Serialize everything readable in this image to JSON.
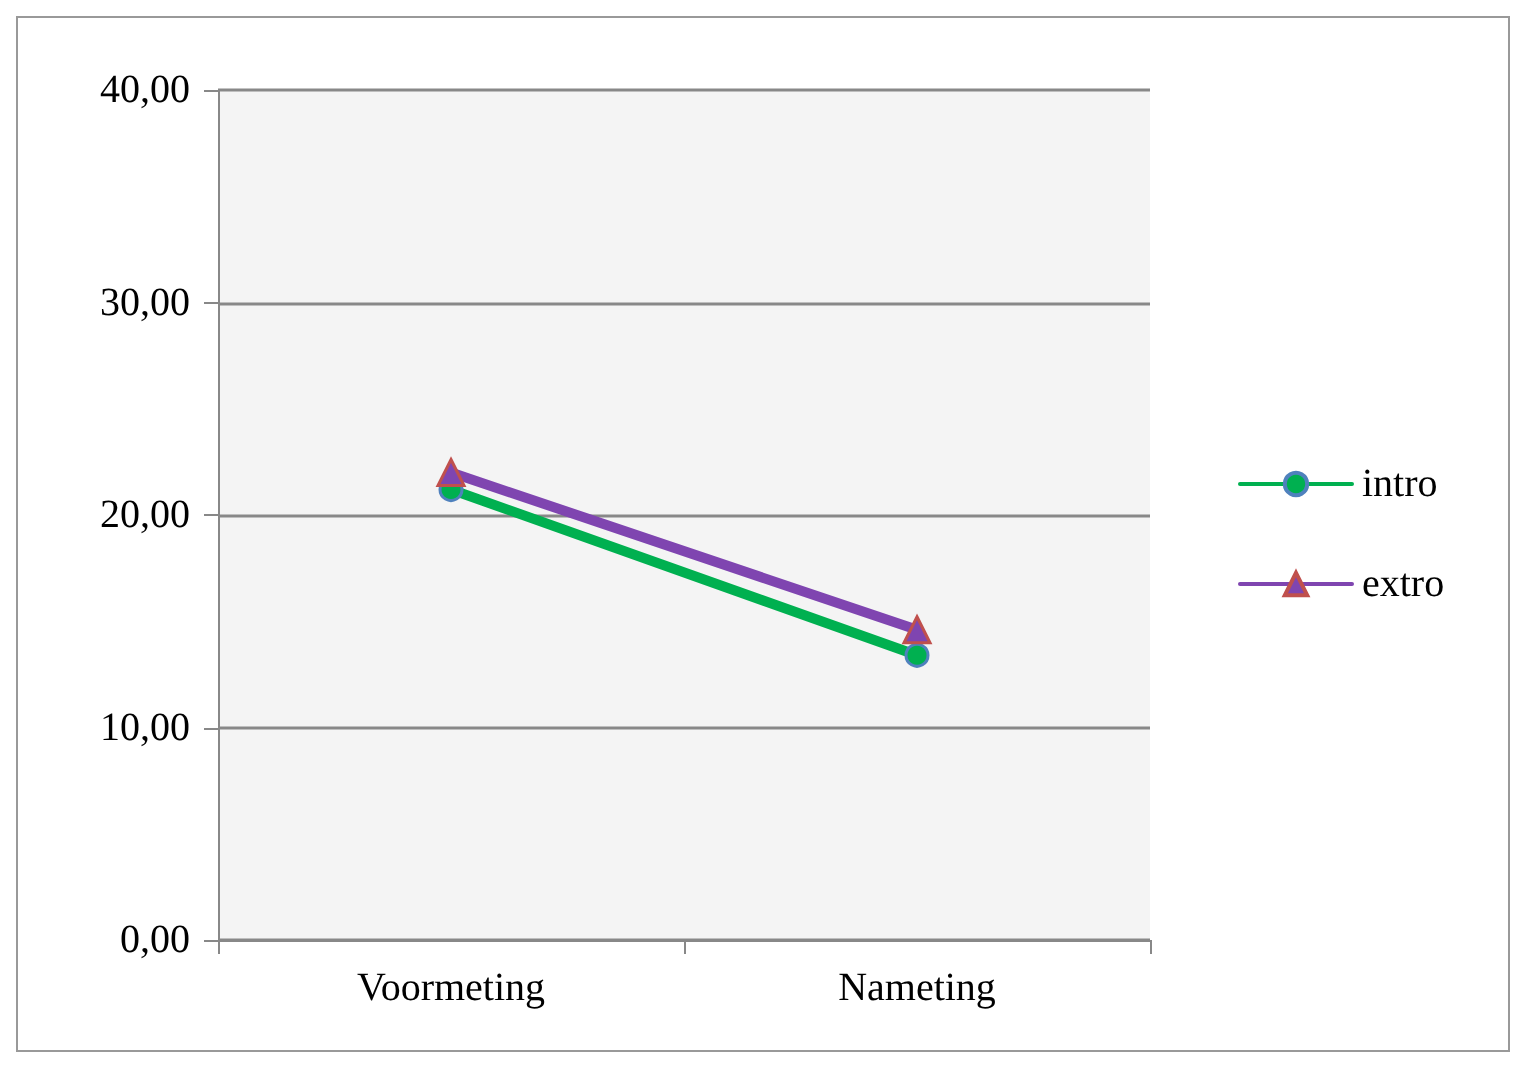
{
  "chart_data": {
    "type": "line",
    "categories": [
      "Voormeting",
      "Nameting"
    ],
    "series": [
      {
        "name": "intro",
        "color": "#00b050",
        "values": [
          21.2,
          13.4
        ],
        "marker": "circle"
      },
      {
        "name": "extro",
        "color": "#7f45b0",
        "values": [
          22.0,
          14.6
        ],
        "marker": "triangle"
      }
    ],
    "ylim": [
      0,
      40
    ],
    "yticks": [
      {
        "value": 0,
        "label": "0,00"
      },
      {
        "value": 10,
        "label": "10,00"
      },
      {
        "value": 20,
        "label": "20,00"
      },
      {
        "value": 30,
        "label": "30,00"
      },
      {
        "value": 40,
        "label": "40,00"
      }
    ],
    "grid": "y",
    "legend": "right",
    "line_style": "solid"
  }
}
